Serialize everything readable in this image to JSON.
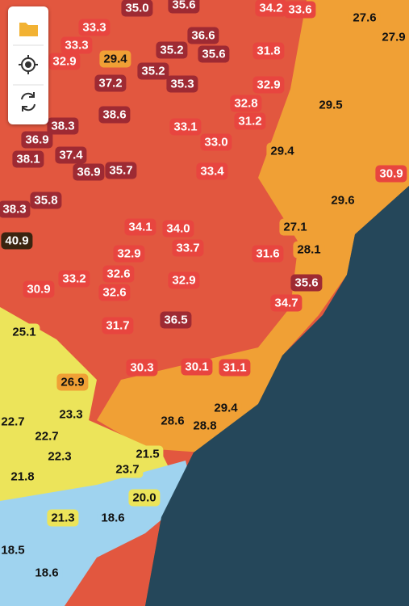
{
  "markers": [
    "35.0",
    "35.6",
    "34.2",
    "33.6",
    "27.6",
    "27.9",
    "33.3",
    "33.3",
    "32.9",
    "29.4",
    "35.2",
    "35.6",
    "36.6",
    "31.8",
    "37.2",
    "35.2",
    "35.3",
    "32.9",
    "29.5",
    "38.6",
    "38.3",
    "32.8",
    "33.1",
    "31.2",
    "36.9",
    "37.4",
    "33.0",
    "29.4",
    "38.1",
    "36.9",
    "35.7",
    "33.4",
    "30.9",
    "35.8",
    "38.3",
    "29.6",
    "27.1",
    "34.1",
    "34.0",
    "40.9",
    "33.7",
    "31.6",
    "28.1",
    "32.9",
    "33.2",
    "32.6",
    "32.9",
    "35.6",
    "30.9",
    "32.6",
    "34.7",
    "36.5",
    "31.7",
    "25.1",
    "30.3",
    "30.1",
    "31.1",
    "26.9",
    "28.6",
    "29.4",
    "28.8",
    "22.7",
    "23.3",
    "22.7",
    "22.3",
    "21.5",
    "23.7",
    "21.8",
    "20.0",
    "21.3",
    "18.6",
    "18.5",
    "18.6"
  ]
}
